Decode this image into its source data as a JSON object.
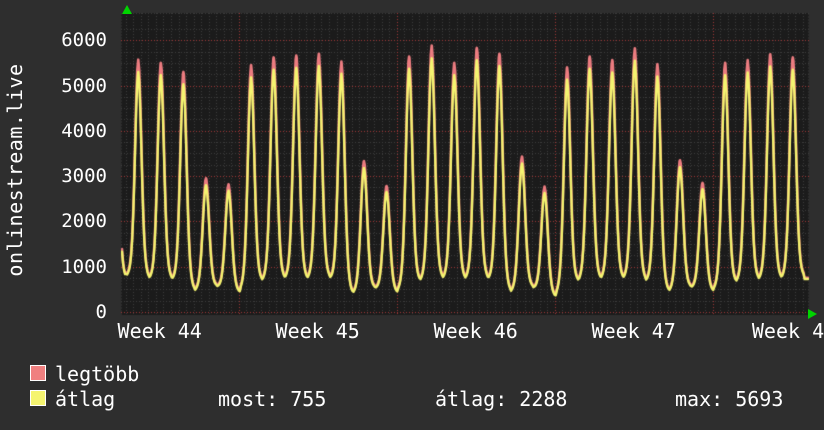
{
  "colors": {
    "outer_background": "#2e2e2e",
    "plot_background": "#1b1b1b",
    "grid_minor": "#3d3d3d",
    "grid_major_red": "#a23636",
    "text": "#ffffff",
    "accent_green": "#00d400",
    "line_max": "#ec7c80",
    "line_avg": "#f5f470",
    "swatch_max": "#f08080",
    "swatch_avg": "#f5f470"
  },
  "chart_data": {
    "type": "line",
    "title": "onlinestream.live",
    "ylabel": "onlinestream.live",
    "xlabel": "",
    "ylim": [
      0,
      6500
    ],
    "yticks": [
      0,
      1000,
      2000,
      3000,
      4000,
      5000,
      6000
    ],
    "xtick_labels": [
      "Week 44",
      "Week 45",
      "Week 46",
      "Week 47",
      "Week 4"
    ],
    "x_unit": "days (one peak per day, weeks start at red vertical gridlines)",
    "grid": "minor gray dashed, major red dotted",
    "legend_position": "bottom-left",
    "series": [
      {
        "name": "legtöbb",
        "color": "#ec7c80",
        "edge_peak": 4700,
        "peaks": [
          5570,
          5500,
          5300,
          2950,
          2820,
          5450,
          5620,
          5660,
          5700,
          5530,
          3330,
          2780,
          5640,
          5880,
          5500,
          5830,
          5700,
          3430,
          2770,
          5400,
          5640,
          5560,
          5820,
          5470,
          3350,
          2850,
          5500,
          5560,
          5690,
          5620
        ]
      },
      {
        "name": "átlag",
        "color": "#f5f470",
        "edge_peak": 4500,
        "peaks": [
          5300,
          5230,
          5030,
          2800,
          2680,
          5180,
          5350,
          5390,
          5430,
          5260,
          3180,
          2650,
          5370,
          5600,
          5230,
          5560,
          5430,
          3280,
          2630,
          5130,
          5370,
          5290,
          5550,
          5200,
          3200,
          2710,
          5230,
          5290,
          5420,
          5350
        ]
      }
    ],
    "troughs_max": [
      760,
      700,
      690,
      450,
      560,
      430,
      650,
      700,
      690,
      720,
      380,
      520,
      420,
      640,
      700,
      690,
      700,
      420,
      540,
      330,
      640,
      690,
      700,
      660,
      430,
      540,
      450,
      620,
      680,
      700,
      755
    ],
    "troughs_avg_offset": -25,
    "stats": {
      "most": 755,
      "atlag": 2288,
      "max": 5693
    }
  },
  "legend": {
    "items": [
      {
        "label": "legtöbb",
        "color": "#f08080"
      },
      {
        "label": "átlag",
        "color": "#f5f470"
      }
    ]
  },
  "stats_row": {
    "most": "most: 755",
    "atlag": "átlag: 2288",
    "max": "max: 5693"
  }
}
